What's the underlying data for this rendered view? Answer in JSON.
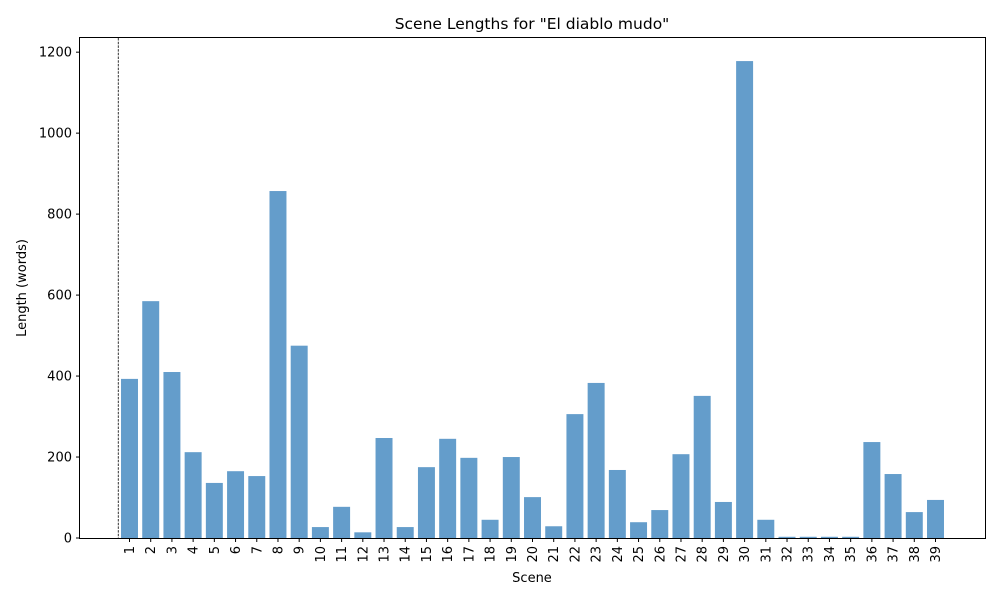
{
  "chart_data": {
    "type": "bar",
    "title": "Scene Lengths for \"El diablo mudo\"",
    "xlabel": "Scene",
    "ylabel": "Length (words)",
    "ylim": [
      0,
      1235
    ],
    "yticks": [
      0,
      200,
      400,
      600,
      800,
      1000,
      1200
    ],
    "categories": [
      "1",
      "2",
      "3",
      "4",
      "5",
      "6",
      "7",
      "8",
      "9",
      "10",
      "11",
      "12",
      "13",
      "14",
      "15",
      "16",
      "17",
      "18",
      "19",
      "20",
      "21",
      "22",
      "23",
      "24",
      "25",
      "26",
      "27",
      "28",
      "29",
      "30",
      "31",
      "32",
      "33",
      "34",
      "35",
      "36",
      "37",
      "38",
      "39"
    ],
    "values": [
      393,
      585,
      410,
      212,
      136,
      165,
      153,
      857,
      475,
      27,
      77,
      14,
      247,
      27,
      175,
      245,
      198,
      45,
      200,
      101,
      29,
      306,
      383,
      168,
      39,
      69,
      207,
      351,
      89,
      1178,
      45,
      3,
      3,
      3,
      3,
      237,
      158,
      64,
      94
    ],
    "bar_color": "#4f8fc4",
    "bar_opacity": 0.88,
    "grid": false,
    "marker_line": {
      "style": "dashed",
      "color": "#000000"
    }
  }
}
